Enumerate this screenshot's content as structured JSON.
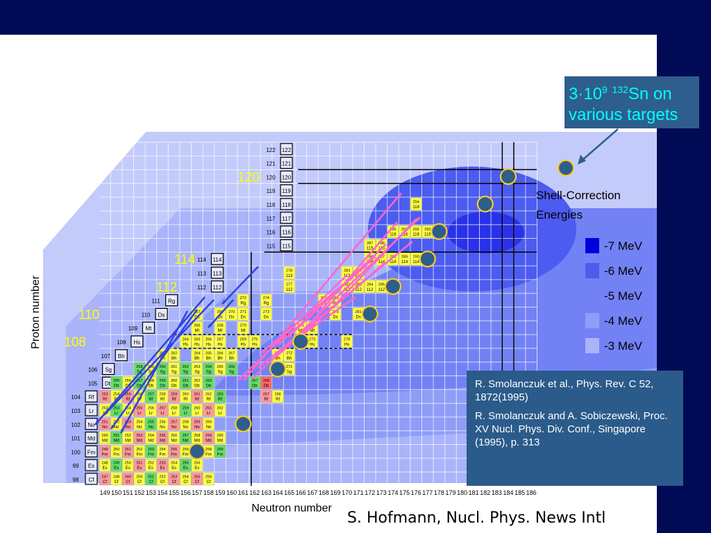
{
  "chart_data": {
    "type": "heatmap",
    "xlabel": "Neutron number",
    "ylabel": "Proton number",
    "x_ticks": [
      149,
      150,
      151,
      152,
      153,
      154,
      155,
      156,
      157,
      158,
      159,
      160,
      161,
      162,
      163,
      164,
      165,
      166,
      167,
      168,
      169,
      170,
      171,
      172,
      173,
      174,
      175,
      176,
      177,
      178,
      179,
      180,
      181,
      182,
      183,
      184,
      185,
      186
    ],
    "element_labels": [
      {
        "z": 98,
        "symbol": "Cf"
      },
      {
        "z": 99,
        "symbol": "Es"
      },
      {
        "z": 100,
        "symbol": "Fm"
      },
      {
        "z": 101,
        "symbol": "Md"
      },
      {
        "z": 102,
        "symbol": "No"
      },
      {
        "z": 103,
        "symbol": "Lr"
      },
      {
        "z": 104,
        "symbol": "Rf"
      },
      {
        "z": 105,
        "symbol": "Db"
      },
      {
        "z": 106,
        "symbol": "Sg"
      },
      {
        "z": 107,
        "symbol": "Bh"
      },
      {
        "z": 108,
        "symbol": "Hs"
      },
      {
        "z": 109,
        "symbol": "Mt"
      },
      {
        "z": 110,
        "symbol": "Ds"
      },
      {
        "z": 111,
        "symbol": "Rg"
      },
      {
        "z": 112,
        "symbol": "112"
      },
      {
        "z": 113,
        "symbol": "113"
      },
      {
        "z": 114,
        "symbol": "114"
      },
      {
        "z": 115,
        "symbol": "115"
      },
      {
        "z": 116,
        "symbol": "116"
      },
      {
        "z": 117,
        "symbol": "117"
      },
      {
        "z": 118,
        "symbol": "118"
      },
      {
        "z": 119,
        "symbol": "119"
      },
      {
        "z": 120,
        "symbol": "120"
      },
      {
        "z": 121,
        "symbol": "121"
      },
      {
        "z": 122,
        "symbol": "122"
      }
    ],
    "magic_labels": [
      {
        "z": 108,
        "text": "108"
      },
      {
        "z": 110,
        "text": "110"
      },
      {
        "z": 112,
        "text": "112"
      },
      {
        "z": 114,
        "text": "114"
      },
      {
        "z": 120,
        "text": "120"
      }
    ],
    "legend": {
      "title": "Shell-Correction Energies",
      "entries": [
        {
          "label": "-7 MeV",
          "color": "#0000dd"
        },
        {
          "label": "-6 MeV",
          "color": "#4c5cf0"
        },
        {
          "label": "-5 MeV",
          "color": "#7282f5"
        },
        {
          "label": "-4 MeV",
          "color": "#8f9df7"
        },
        {
          "label": "-3 MeV",
          "color": "#a9b4fa"
        }
      ]
    },
    "target_markers": [
      {
        "n": 157,
        "z": 100
      },
      {
        "n": 161,
        "z": 102
      },
      {
        "n": 164,
        "z": 106
      },
      {
        "n": 166,
        "z": 108
      },
      {
        "n": 172,
        "z": 110
      },
      {
        "n": 174,
        "z": 112
      },
      {
        "n": 177,
        "z": 114
      },
      {
        "n": 178,
        "z": 116
      },
      {
        "n": 182,
        "z": 118
      },
      {
        "n": 184,
        "z": 120
      }
    ],
    "nuclides": [
      {
        "n": 149,
        "z": 98,
        "a": "247",
        "s": "Cf"
      },
      {
        "n": 150,
        "z": 98,
        "a": "248",
        "s": "Cf"
      },
      {
        "n": 151,
        "z": 98,
        "a": "249",
        "s": "Cf"
      },
      {
        "n": 152,
        "z": 98,
        "a": "250",
        "s": "Cf"
      },
      {
        "n": 153,
        "z": 98,
        "a": "251",
        "s": "Cf"
      },
      {
        "n": 154,
        "z": 98,
        "a": "252",
        "s": "Cf"
      },
      {
        "n": 155,
        "z": 98,
        "a": "253",
        "s": "Cf"
      },
      {
        "n": 156,
        "z": 98,
        "a": "254",
        "s": "Cf"
      },
      {
        "n": 157,
        "z": 98,
        "a": "255",
        "s": "Cf"
      },
      {
        "n": 158,
        "z": 98,
        "a": "256",
        "s": "Cf"
      },
      {
        "n": 149,
        "z": 99,
        "a": "248",
        "s": "Es"
      },
      {
        "n": 150,
        "z": 99,
        "a": "249",
        "s": "Es"
      },
      {
        "n": 151,
        "z": 99,
        "a": "250",
        "s": "Es"
      },
      {
        "n": 152,
        "z": 99,
        "a": "251",
        "s": "Es"
      },
      {
        "n": 153,
        "z": 99,
        "a": "252",
        "s": "Es"
      },
      {
        "n": 154,
        "z": 99,
        "a": "253",
        "s": "Es"
      },
      {
        "n": 155,
        "z": 99,
        "a": "254",
        "s": "Es"
      },
      {
        "n": 156,
        "z": 99,
        "a": "255",
        "s": "Es"
      },
      {
        "n": 157,
        "z": 99,
        "a": "256",
        "s": "Es"
      },
      {
        "n": 149,
        "z": 100,
        "a": "249",
        "s": "Fm"
      },
      {
        "n": 150,
        "z": 100,
        "a": "250",
        "s": "Fm"
      },
      {
        "n": 151,
        "z": 100,
        "a": "251",
        "s": "Fm"
      },
      {
        "n": 152,
        "z": 100,
        "a": "252",
        "s": "Fm"
      },
      {
        "n": 153,
        "z": 100,
        "a": "253",
        "s": "Fm"
      },
      {
        "n": 154,
        "z": 100,
        "a": "254",
        "s": "Fm"
      },
      {
        "n": 155,
        "z": 100,
        "a": "255",
        "s": "Fm"
      },
      {
        "n": 156,
        "z": 100,
        "a": "256",
        "s": "Fm"
      },
      {
        "n": 157,
        "z": 100,
        "a": "257",
        "s": "Fm"
      },
      {
        "n": 158,
        "z": 100,
        "a": "258",
        "s": "Fm"
      },
      {
        "n": 159,
        "z": 100,
        "a": "259",
        "s": "Fm"
      },
      {
        "n": 149,
        "z": 101,
        "a": "250",
        "s": "Md"
      },
      {
        "n": 150,
        "z": 101,
        "a": "251",
        "s": "Md"
      },
      {
        "n": 151,
        "z": 101,
        "a": "252",
        "s": "Md"
      },
      {
        "n": 152,
        "z": 101,
        "a": "253",
        "s": "Md"
      },
      {
        "n": 153,
        "z": 101,
        "a": "254",
        "s": "Md"
      },
      {
        "n": 154,
        "z": 101,
        "a": "255",
        "s": "Md"
      },
      {
        "n": 155,
        "z": 101,
        "a": "256",
        "s": "Md"
      },
      {
        "n": 156,
        "z": 101,
        "a": "257",
        "s": "Md"
      },
      {
        "n": 157,
        "z": 101,
        "a": "258",
        "s": "Md"
      },
      {
        "n": 158,
        "z": 101,
        "a": "259",
        "s": "Md"
      },
      {
        "n": 159,
        "z": 101,
        "a": "260",
        "s": "Md"
      },
      {
        "n": 149,
        "z": 102,
        "a": "251",
        "s": "No"
      },
      {
        "n": 150,
        "z": 102,
        "a": "252",
        "s": "No"
      },
      {
        "n": 151,
        "z": 102,
        "a": "253",
        "s": "No"
      },
      {
        "n": 152,
        "z": 102,
        "a": "254",
        "s": "No"
      },
      {
        "n": 153,
        "z": 102,
        "a": "255",
        "s": "No"
      },
      {
        "n": 154,
        "z": 102,
        "a": "256",
        "s": "No"
      },
      {
        "n": 155,
        "z": 102,
        "a": "257",
        "s": "No"
      },
      {
        "n": 156,
        "z": 102,
        "a": "258",
        "s": "No"
      },
      {
        "n": 157,
        "z": 102,
        "a": "259",
        "s": "No"
      },
      {
        "n": 158,
        "z": 102,
        "a": "260",
        "s": "No"
      },
      {
        "n": 149,
        "z": 103,
        "a": "252",
        "s": "Lr"
      },
      {
        "n": 150,
        "z": 103,
        "a": "253",
        "s": "Lr"
      },
      {
        "n": 151,
        "z": 103,
        "a": "254",
        "s": "Lr"
      },
      {
        "n": 152,
        "z": 103,
        "a": "255",
        "s": "Lr"
      },
      {
        "n": 153,
        "z": 103,
        "a": "256",
        "s": "Lr"
      },
      {
        "n": 154,
        "z": 103,
        "a": "257",
        "s": "Lr"
      },
      {
        "n": 155,
        "z": 103,
        "a": "258",
        "s": "Lr"
      },
      {
        "n": 156,
        "z": 103,
        "a": "259",
        "s": "Lr"
      },
      {
        "n": 157,
        "z": 103,
        "a": "260",
        "s": "Lr"
      },
      {
        "n": 158,
        "z": 103,
        "a": "261",
        "s": "Lr"
      },
      {
        "n": 159,
        "z": 103,
        "a": "262",
        "s": "Lr"
      },
      {
        "n": 149,
        "z": 104,
        "a": "253",
        "s": "Rf"
      },
      {
        "n": 150,
        "z": 104,
        "a": "254",
        "s": "Rf"
      },
      {
        "n": 151,
        "z": 104,
        "a": "255",
        "s": "Rf"
      },
      {
        "n": 152,
        "z": 104,
        "a": "256",
        "s": "Rf"
      },
      {
        "n": 153,
        "z": 104,
        "a": "257",
        "s": "Rf"
      },
      {
        "n": 154,
        "z": 104,
        "a": "258",
        "s": "Rf"
      },
      {
        "n": 155,
        "z": 104,
        "a": "259",
        "s": "Rf"
      },
      {
        "n": 156,
        "z": 104,
        "a": "260",
        "s": "Rf"
      },
      {
        "n": 157,
        "z": 104,
        "a": "261",
        "s": "Rf"
      },
      {
        "n": 158,
        "z": 104,
        "a": "262",
        "s": "Rf"
      },
      {
        "n": 159,
        "z": 104,
        "a": "263",
        "s": "Rf"
      },
      {
        "n": 163,
        "z": 104,
        "a": "267",
        "s": "Rf"
      },
      {
        "n": 164,
        "z": 104,
        "a": "268",
        "s": "Rf"
      },
      {
        "n": 150,
        "z": 105,
        "a": "255",
        "s": "Db"
      },
      {
        "n": 151,
        "z": 105,
        "a": "256",
        "s": "Db"
      },
      {
        "n": 152,
        "z": 105,
        "a": "257",
        "s": "Db"
      },
      {
        "n": 153,
        "z": 105,
        "a": "258",
        "s": "Db"
      },
      {
        "n": 154,
        "z": 105,
        "a": "259",
        "s": "Db"
      },
      {
        "n": 155,
        "z": 105,
        "a": "260",
        "s": "Db"
      },
      {
        "n": 156,
        "z": 105,
        "a": "261",
        "s": "Db"
      },
      {
        "n": 157,
        "z": 105,
        "a": "262",
        "s": "Db"
      },
      {
        "n": 158,
        "z": 105,
        "a": "263",
        "s": "Db"
      },
      {
        "n": 162,
        "z": 105,
        "a": "267",
        "s": "Db"
      },
      {
        "n": 163,
        "z": 105,
        "a": "268",
        "s": "Db"
      },
      {
        "n": 152,
        "z": 106,
        "a": "258",
        "s": "Sg"
      },
      {
        "n": 153,
        "z": 106,
        "a": "259",
        "s": "Sg"
      },
      {
        "n": 154,
        "z": 106,
        "a": "260",
        "s": "Sg"
      },
      {
        "n": 155,
        "z": 106,
        "a": "261",
        "s": "Sg"
      },
      {
        "n": 156,
        "z": 106,
        "a": "262",
        "s": "Sg"
      },
      {
        "n": 157,
        "z": 106,
        "a": "263",
        "s": "Sg"
      },
      {
        "n": 158,
        "z": 106,
        "a": "264",
        "s": "Sg"
      },
      {
        "n": 159,
        "z": 106,
        "a": "265",
        "s": "Sg"
      },
      {
        "n": 160,
        "z": 106,
        "a": "266",
        "s": "Sg"
      },
      {
        "n": 165,
        "z": 106,
        "a": "271",
        "s": "Sg"
      },
      {
        "n": 154,
        "z": 107,
        "a": "261",
        "s": "Bh"
      },
      {
        "n": 155,
        "z": 107,
        "a": "262",
        "s": "Bh"
      },
      {
        "n": 157,
        "z": 107,
        "a": "264",
        "s": "Bh"
      },
      {
        "n": 158,
        "z": 107,
        "a": "265",
        "s": "Bh"
      },
      {
        "n": 159,
        "z": 107,
        "a": "266",
        "s": "Bh"
      },
      {
        "n": 160,
        "z": 107,
        "a": "267",
        "s": "Bh"
      },
      {
        "n": 164,
        "z": 107,
        "a": "271",
        "s": "Bh"
      },
      {
        "n": 165,
        "z": 107,
        "a": "272",
        "s": "Bh"
      },
      {
        "n": 156,
        "z": 108,
        "a": "264",
        "s": "Hs"
      },
      {
        "n": 157,
        "z": 108,
        "a": "265",
        "s": "Hs"
      },
      {
        "n": 158,
        "z": 108,
        "a": "266",
        "s": "Hs"
      },
      {
        "n": 159,
        "z": 108,
        "a": "267",
        "s": "Hs"
      },
      {
        "n": 161,
        "z": 108,
        "a": "269",
        "s": "Hs"
      },
      {
        "n": 162,
        "z": 108,
        "a": "270",
        "s": "Hs"
      },
      {
        "n": 167,
        "z": 108,
        "a": "275",
        "s": "Hs"
      },
      {
        "n": 170,
        "z": 108,
        "a": "278",
        "s": "Hs"
      },
      {
        "n": 157,
        "z": 109,
        "a": "266",
        "s": "Mt"
      },
      {
        "n": 159,
        "z": 109,
        "a": "268",
        "s": "Mt"
      },
      {
        "n": 161,
        "z": 109,
        "a": "270",
        "s": "Mt"
      },
      {
        "n": 166,
        "z": 109,
        "a": "275",
        "s": "Mt"
      },
      {
        "n": 167,
        "z": 109,
        "a": "276",
        "s": "Mt"
      },
      {
        "n": 157,
        "z": 110,
        "a": "267",
        "s": "Ds"
      },
      {
        "n": 159,
        "z": 110,
        "a": "269",
        "s": "Ds"
      },
      {
        "n": 160,
        "z": 110,
        "a": "270",
        "s": "Ds"
      },
      {
        "n": 161,
        "z": 110,
        "a": "271",
        "s": "Ds"
      },
      {
        "n": 163,
        "z": 110,
        "a": "273",
        "s": "Ds"
      },
      {
        "n": 169,
        "z": 110,
        "a": "279",
        "s": "Ds"
      },
      {
        "n": 171,
        "z": 110,
        "a": "281",
        "s": "Ds"
      },
      {
        "n": 161,
        "z": 111,
        "a": "272",
        "s": "Rg"
      },
      {
        "n": 163,
        "z": 111,
        "a": "274",
        "s": "Rg"
      },
      {
        "n": 168,
        "z": 111,
        "a": "279",
        "s": "Rg"
      },
      {
        "n": 169,
        "z": 111,
        "a": "280",
        "s": "Rg"
      },
      {
        "n": 165,
        "z": 112,
        "a": "277",
        "s": "112"
      },
      {
        "n": 170,
        "z": 112,
        "a": "282",
        "s": "112"
      },
      {
        "n": 171,
        "z": 112,
        "a": "283",
        "s": "112"
      },
      {
        "n": 172,
        "z": 112,
        "a": "284",
        "s": "112"
      },
      {
        "n": 173,
        "z": 112,
        "a": "285",
        "s": "112"
      },
      {
        "n": 165,
        "z": 113,
        "a": "278",
        "s": "113"
      },
      {
        "n": 170,
        "z": 113,
        "a": "283",
        "s": "113"
      },
      {
        "n": 171,
        "z": 113,
        "a": "284",
        "s": "113"
      },
      {
        "n": 172,
        "z": 114,
        "a": "286",
        "s": "114"
      },
      {
        "n": 173,
        "z": 114,
        "a": "287",
        "s": "114"
      },
      {
        "n": 174,
        "z": 114,
        "a": "288",
        "s": "114"
      },
      {
        "n": 175,
        "z": 114,
        "a": "289",
        "s": "114"
      },
      {
        "n": 176,
        "z": 114,
        "a": "290",
        "s": "114"
      },
      {
        "n": 172,
        "z": 115,
        "a": "287",
        "s": "115"
      },
      {
        "n": 173,
        "z": 115,
        "a": "288",
        "s": "115"
      },
      {
        "n": 174,
        "z": 116,
        "a": "290",
        "s": "116"
      },
      {
        "n": 175,
        "z": 116,
        "a": "291",
        "s": "116"
      },
      {
        "n": 176,
        "z": 116,
        "a": "292",
        "s": "116"
      },
      {
        "n": 177,
        "z": 116,
        "a": "293",
        "s": "116"
      },
      {
        "n": 176,
        "z": 118,
        "a": "294",
        "s": "118"
      }
    ]
  },
  "annotations": {
    "sn_targets_line1": "3·10",
    "sn_targets_exp": "9",
    "sn_targets_mass": "132",
    "sn_targets_tail": "Sn on",
    "sn_targets_line2": "various targets",
    "legend_title_line1": "Shell-Correction",
    "legend_title_line2": "Energies"
  },
  "references": [
    {
      "text": "R. Smolanczuk et al., Phys. Rev. C 52, 1872(1995)"
    },
    {
      "text": "R. Smolanczuk and A. Sobiczewski, Proc. XV Nucl. Phys. Div. Conf., Singapore (1995), p. 313"
    }
  ],
  "credit": "S. Hofmann, Nucl. Phys. News Intl"
}
